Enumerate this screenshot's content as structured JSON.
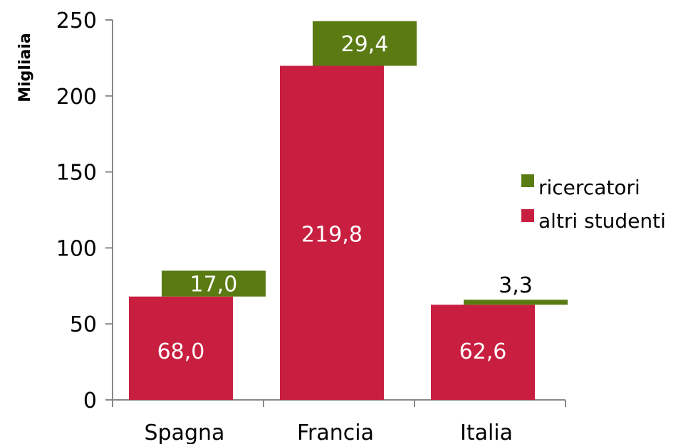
{
  "chart_data": {
    "type": "bar",
    "stacked": true,
    "title": "",
    "xlabel": "",
    "ylabel": "Migliaia",
    "ylim": [
      0,
      250
    ],
    "yticks": [
      0,
      50,
      100,
      150,
      200,
      250
    ],
    "categories": [
      "Spagna",
      "Francia",
      "Italia"
    ],
    "series": [
      {
        "name": "altri studenti",
        "color": "#c81e3f",
        "values": [
          68.0,
          219.8,
          62.6
        ],
        "labels": [
          "68,0",
          "219,8",
          "62,6"
        ],
        "label_color": "#ffffff"
      },
      {
        "name": "ricercatori",
        "color": "#5a7a12",
        "values": [
          17.0,
          29.4,
          3.3
        ],
        "labels": [
          "17,0",
          "29,4",
          "3,3"
        ],
        "label_color": "#ffffff"
      }
    ],
    "legend": {
      "position": "right",
      "entries": [
        "ricercatori",
        "altri studenti"
      ]
    },
    "grid": false
  }
}
